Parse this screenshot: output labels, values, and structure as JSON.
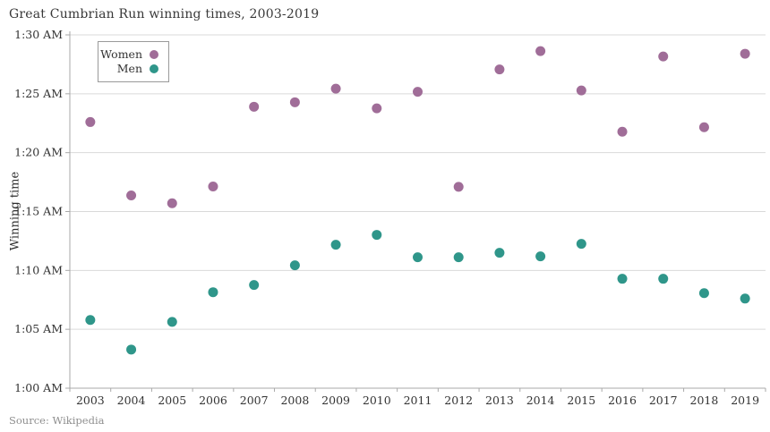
{
  "header": {
    "title": "Great Cumbrian Run winning times, 2003-2019"
  },
  "legend": {
    "items": [
      {
        "label": "Women",
        "color": "#a06d98"
      },
      {
        "label": "Men",
        "color": "#2f968a"
      }
    ]
  },
  "axes": {
    "y_label": "Winning time"
  },
  "footer": {
    "source": "Source: Wikipedia"
  },
  "colors": {
    "women_dot": "#a06d98",
    "men_dot": "#2f968a",
    "gridline": "#d9d9d9",
    "axis_line": "#a9a9a9",
    "tick_text": "#333333",
    "title_text": "#383838",
    "source_text": "#8f8f8f"
  },
  "chart_data": {
    "type": "scatter",
    "title": "Great Cumbrian Run winning times, 2003-2019",
    "xlabel": "",
    "ylabel": "Winning time",
    "legend_position": "top-left",
    "grid": "horizontal",
    "x_categories": [
      "2003",
      "2004",
      "2005",
      "2006",
      "2007",
      "2008",
      "2009",
      "2010",
      "2011",
      "2012",
      "2013",
      "2014",
      "2015",
      "2016",
      "2017",
      "2018",
      "2019"
    ],
    "y_tick_labels_top_to_bottom": [
      "1:30 AM",
      "1:25 AM",
      "1:20 AM",
      "1:15 AM",
      "1:10 AM",
      "1:05 AM",
      "1:00 AM"
    ],
    "y_axis_minutes_after_1am": {
      "min": 0,
      "max": 30,
      "tick_step": 5
    },
    "series": [
      {
        "name": "Women",
        "color": "#a06d98",
        "times": [
          "1:22:36",
          "1:16:22",
          "1:15:42",
          "1:17:08",
          "1:23:54",
          "1:24:17",
          "1:25:26",
          "1:23:46",
          "1:25:10",
          "1:17:06",
          "1:27:04",
          "1:28:37",
          "1:25:17",
          "1:21:47",
          "1:28:10",
          "1:22:10",
          "1:28:24"
        ],
        "minutes_after_1am": [
          22.6,
          16.37,
          15.7,
          17.13,
          23.9,
          24.28,
          25.43,
          23.76,
          25.17,
          17.1,
          27.07,
          28.62,
          25.28,
          21.78,
          28.17,
          22.16,
          28.4
        ]
      },
      {
        "name": "Men",
        "color": "#2f968a",
        "times": [
          "1:05:47",
          "1:03:17",
          "1:05:38",
          "1:08:09",
          "1:08:46",
          "1:10:26",
          "1:12:11",
          "1:13:01",
          "1:11:07",
          "1:11:07",
          "1:11:30",
          "1:11:11",
          "1:12:16",
          "1:09:17",
          "1:09:17",
          "1:08:04",
          "1:07:37"
        ],
        "minutes_after_1am": [
          5.79,
          3.28,
          5.63,
          8.15,
          8.76,
          10.43,
          12.18,
          13.02,
          11.12,
          11.12,
          11.5,
          11.19,
          12.26,
          9.29,
          9.29,
          8.07,
          7.61
        ]
      }
    ]
  }
}
